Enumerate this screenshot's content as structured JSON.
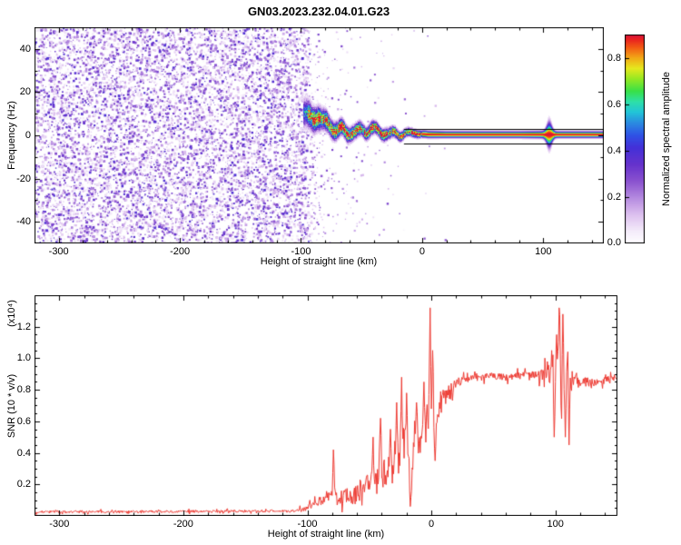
{
  "title": "GN03.2023.232.04.01.G23",
  "chart_data": [
    {
      "type": "heatmap",
      "name": "spectrogram",
      "xlabel": "Height of straight line (km)",
      "ylabel": "Frequency (Hz)",
      "xlim": [
        -320,
        150
      ],
      "ylim": [
        -50,
        50
      ],
      "xticks": [
        -300,
        -200,
        -100,
        0,
        100
      ],
      "yticks": [
        -40,
        -20,
        0,
        20,
        40
      ],
      "colorbar": {
        "label": "Normalized spectral amplitude",
        "ticks": [
          0,
          0.2,
          0.4,
          0.6,
          0.8
        ],
        "range": [
          0,
          0.9
        ]
      },
      "colormap_stops": [
        {
          "v": 0.0,
          "color": "#ffffff"
        },
        {
          "v": 0.06,
          "color": "#f4ecfa"
        },
        {
          "v": 0.14,
          "color": "#ddc0ef"
        },
        {
          "v": 0.22,
          "color": "#b58ae0"
        },
        {
          "v": 0.3,
          "color": "#8a52cf"
        },
        {
          "v": 0.38,
          "color": "#6632cc"
        },
        {
          "v": 0.46,
          "color": "#4430d8"
        },
        {
          "v": 0.52,
          "color": "#2f52e6"
        },
        {
          "v": 0.58,
          "color": "#2a8ce0"
        },
        {
          "v": 0.63,
          "color": "#22c4d8"
        },
        {
          "v": 0.68,
          "color": "#2ee0a8"
        },
        {
          "v": 0.73,
          "color": "#38e048"
        },
        {
          "v": 0.79,
          "color": "#96e822"
        },
        {
          "v": 0.84,
          "color": "#e6e81e"
        },
        {
          "v": 0.89,
          "color": "#f2a816"
        },
        {
          "v": 0.94,
          "color": "#f25a14"
        },
        {
          "v": 0.98,
          "color": "#e82020"
        },
        {
          "v": 1.0,
          "color": "#d81440"
        }
      ],
      "noise_region": {
        "x_range": [
          -320,
          -97
        ],
        "fade_to": -80,
        "freq_range": [
          -50,
          50
        ],
        "amplitude_range": [
          0.06,
          0.44
        ],
        "dot_count": 9000
      },
      "sparse_dots": {
        "x_range": [
          -97,
          30
        ],
        "count": 300
      },
      "signal_trace": {
        "point_format": "[height_km, center_freq_hz, halfwidth_hz, intensity]",
        "points": [
          [
            -98,
            11,
            5,
            0.55
          ],
          [
            -94,
            9,
            4.5,
            0.8
          ],
          [
            -90,
            7.5,
            4,
            0.95
          ],
          [
            -86,
            8.5,
            3.8,
            1
          ],
          [
            -82,
            5.5,
            3.4,
            0.95
          ],
          [
            -78,
            4.5,
            3.2,
            1
          ],
          [
            -74,
            3.2,
            3,
            0.95
          ],
          [
            -70,
            2.5,
            2.8,
            0.95
          ],
          [
            -66,
            3.5,
            2.6,
            1
          ],
          [
            -62,
            1.8,
            2.5,
            0.95
          ],
          [
            -58,
            2.6,
            2.4,
            0.95
          ],
          [
            -54,
            1.6,
            2.3,
            1
          ],
          [
            -50,
            2.2,
            2.2,
            0.95
          ],
          [
            -46,
            1.2,
            2.1,
            1
          ],
          [
            -42,
            2.4,
            2.2,
            1
          ],
          [
            -38,
            1.4,
            2,
            0.95
          ],
          [
            -34,
            1,
            1.9,
            1
          ],
          [
            -30,
            1.8,
            2,
            1
          ],
          [
            -26,
            1,
            1.8,
            0.95
          ],
          [
            -22,
            1.6,
            1.7,
            1
          ],
          [
            -18,
            0.8,
            1.6,
            1
          ],
          [
            -14,
            1.2,
            1.5,
            0.95
          ],
          [
            -10,
            0.6,
            1.4,
            1
          ],
          [
            -5,
            0.8,
            1.3,
            1
          ],
          [
            0,
            0.4,
            1.2,
            1
          ],
          [
            20,
            0.3,
            1.1,
            1
          ],
          [
            50,
            0.3,
            1.1,
            1
          ],
          [
            80,
            0.3,
            1.1,
            1
          ],
          [
            100,
            0.3,
            1.2,
            1
          ],
          [
            105,
            0.3,
            1.3,
            1
          ],
          [
            110,
            0.3,
            1.1,
            1
          ],
          [
            150,
            0.3,
            1.1,
            1
          ]
        ]
      },
      "reference_lines": [
        {
          "freq": 2.8,
          "x_range": [
            -15,
            150
          ]
        },
        {
          "freq": -3.8,
          "x_range": [
            -15,
            150
          ]
        }
      ],
      "blip": {
        "x": 105,
        "extra_halfwidth_hz": 3.2
      }
    },
    {
      "type": "line",
      "name": "snr",
      "xlabel": "Height of straight line (km)",
      "ylabel": "SNR (10 * v/v)",
      "y_scale_label": "(x10⁴)",
      "xlim": [
        -320,
        150
      ],
      "ylim": [
        0,
        1.4
      ],
      "xticks": [
        -300,
        -200,
        -100,
        0,
        100
      ],
      "yticks": [
        0.2,
        0.4,
        0.6,
        0.8,
        1.0,
        1.2
      ],
      "line_color": "#ee3b33",
      "envelope": [
        [
          -320,
          0.025
        ],
        [
          -200,
          0.028
        ],
        [
          -150,
          0.03
        ],
        [
          -115,
          0.032
        ],
        [
          -105,
          0.04
        ],
        [
          -98,
          0.06
        ],
        [
          -92,
          0.08
        ],
        [
          -88,
          0.1
        ],
        [
          -84,
          0.12
        ],
        [
          -80,
          0.14
        ],
        [
          -77,
          0.12
        ],
        [
          -72,
          0.1
        ],
        [
          -68,
          0.13
        ],
        [
          -64,
          0.11
        ],
        [
          -60,
          0.14
        ],
        [
          -56,
          0.18
        ],
        [
          -52,
          0.22
        ],
        [
          -50,
          0.18
        ],
        [
          -47,
          0.28
        ],
        [
          -44,
          0.22
        ],
        [
          -41,
          0.35
        ],
        [
          -39,
          0.25
        ],
        [
          -36,
          0.3
        ],
        [
          -33,
          0.38
        ],
        [
          -31,
          0.28
        ],
        [
          -28,
          0.45
        ],
        [
          -26,
          0.35
        ],
        [
          -24,
          0.55
        ],
        [
          -22,
          0.4
        ],
        [
          -20,
          0.5
        ],
        [
          -18,
          0.3
        ],
        [
          -16,
          0.25
        ],
        [
          -14,
          0.42
        ],
        [
          -12,
          0.5
        ],
        [
          -10,
          0.45
        ],
        [
          -8,
          0.55
        ],
        [
          -6,
          0.5
        ],
        [
          -4,
          0.6
        ],
        [
          -2,
          0.65
        ],
        [
          0,
          0.6
        ],
        [
          2,
          0.55
        ],
        [
          4,
          0.62
        ],
        [
          6,
          0.68
        ],
        [
          8,
          0.72
        ],
        [
          10,
          0.75
        ],
        [
          13,
          0.78
        ],
        [
          16,
          0.8
        ],
        [
          20,
          0.84
        ],
        [
          25,
          0.86
        ],
        [
          30,
          0.87
        ],
        [
          40,
          0.88
        ],
        [
          50,
          0.89
        ],
        [
          60,
          0.88
        ],
        [
          70,
          0.89
        ],
        [
          80,
          0.9
        ],
        [
          88,
          0.89
        ],
        [
          92,
          0.9
        ],
        [
          96,
          0.92
        ],
        [
          100,
          0.9
        ],
        [
          104,
          0.95
        ],
        [
          108,
          0.8
        ],
        [
          112,
          0.85
        ],
        [
          116,
          0.86
        ],
        [
          120,
          0.85
        ],
        [
          130,
          0.85
        ],
        [
          140,
          0.86
        ],
        [
          150,
          0.87
        ]
      ],
      "noise_amplitude": [
        [
          -320,
          0.008
        ],
        [
          -120,
          0.008
        ],
        [
          -105,
          0.015
        ],
        [
          -95,
          0.025
        ],
        [
          -85,
          0.04
        ],
        [
          -75,
          0.05
        ],
        [
          -65,
          0.05
        ],
        [
          -55,
          0.07
        ],
        [
          -45,
          0.09
        ],
        [
          -35,
          0.11
        ],
        [
          -25,
          0.13
        ],
        [
          -15,
          0.12
        ],
        [
          -5,
          0.12
        ],
        [
          0,
          0.1
        ],
        [
          5,
          0.08
        ],
        [
          10,
          0.06
        ],
        [
          15,
          0.05
        ],
        [
          20,
          0.03
        ],
        [
          30,
          0.022
        ],
        [
          60,
          0.022
        ],
        [
          85,
          0.025
        ],
        [
          92,
          0.06
        ],
        [
          96,
          0.1
        ],
        [
          100,
          0.13
        ],
        [
          104,
          0.15
        ],
        [
          108,
          0.14
        ],
        [
          112,
          0.08
        ],
        [
          116,
          0.04
        ],
        [
          120,
          0.03
        ],
        [
          150,
          0.025
        ]
      ],
      "spikes": [
        [
          -79,
          0.42
        ],
        [
          -47,
          0.5
        ],
        [
          -41,
          0.62
        ],
        [
          -33,
          0.55
        ],
        [
          -28,
          0.72
        ],
        [
          -24,
          0.88
        ],
        [
          -20,
          0.78
        ],
        [
          -17,
          0.06
        ],
        [
          -12,
          0.72
        ],
        [
          -6,
          0.85
        ],
        [
          -1,
          1.32
        ],
        [
          1,
          1.05
        ],
        [
          3,
          0.35
        ],
        [
          97,
          1.05
        ],
        [
          99,
          0.5
        ],
        [
          101,
          1.15
        ],
        [
          103,
          1.32
        ],
        [
          105,
          0.55
        ],
        [
          106,
          1.28
        ],
        [
          108,
          0.5
        ],
        [
          110,
          1.1
        ],
        [
          111,
          0.45
        ]
      ]
    }
  ]
}
